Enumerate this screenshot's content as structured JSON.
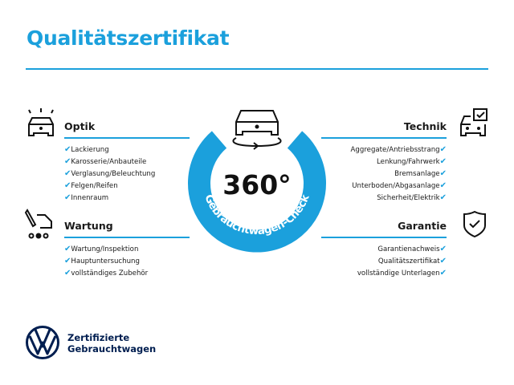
{
  "header": {
    "title": "Qualitätszertifikat"
  },
  "colors": {
    "accent": "#1ba0dc",
    "brand": "#001e50"
  },
  "center": {
    "value": "360°",
    "label": "Gebrauchtwagen-Check",
    "icon": "car-rotate-icon"
  },
  "sections": {
    "optik": {
      "title": "Optik",
      "icon": "car-lights-icon",
      "items": [
        "Lackierung",
        "Karosserie/Anbauteile",
        "Verglasung/Beleuchtung",
        "Felgen/Reifen",
        "Innenraum"
      ]
    },
    "wartung": {
      "title": "Wartung",
      "icon": "car-service-icon",
      "items": [
        "Wartung/Inspektion",
        "Hauptuntersuchung",
        "vollständiges Zubehör"
      ]
    },
    "technik": {
      "title": "Technik",
      "icon": "car-checklist-icon",
      "items": [
        "Aggregate/Antriebsstrang",
        "Lenkung/Fahrwerk",
        "Bremsanlage",
        "Unterboden/Abgasanlage",
        "Sicherheit/Elektrik"
      ]
    },
    "garantie": {
      "title": "Garantie",
      "icon": "shield-check-icon",
      "items": [
        "Garantienachweis",
        "Qualitätszertifikat",
        "vollständige Unterlagen"
      ]
    }
  },
  "check_mark": "✔",
  "footer": {
    "line1": "Zertifizierte",
    "line2": "Gebrauchtwagen",
    "logo": "vw-logo"
  }
}
